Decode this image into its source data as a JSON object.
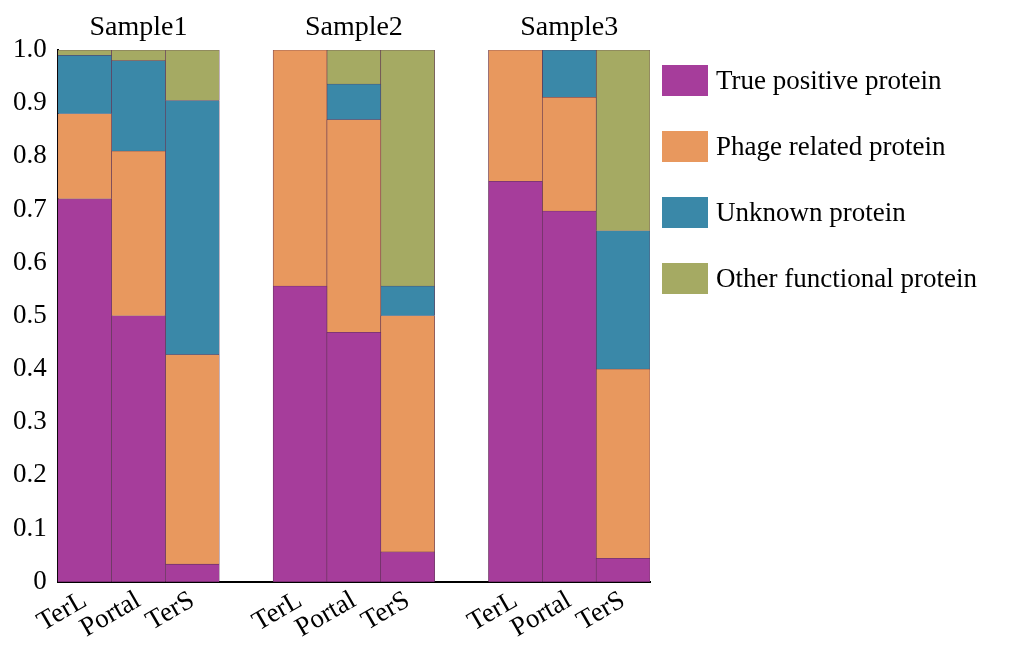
{
  "chart_data": {
    "type": "bar",
    "stacked": true,
    "categories": [
      "TerL",
      "Portal",
      "TerS",
      null,
      "TerL",
      "Portal",
      "TerS",
      null,
      "TerL",
      "Portal",
      "TerS"
    ],
    "series": [
      {
        "name": "True positive protein",
        "color": "#a63d9b",
        "values": [
          0.72,
          0.5,
          0.033,
          null,
          0.556,
          0.469,
          0.056,
          null,
          0.753,
          0.697,
          0.044
        ]
      },
      {
        "name": "Phage related protein",
        "color": "#e8985e",
        "values": [
          0.16,
          0.31,
          0.394,
          null,
          0.444,
          0.4,
          0.444,
          null,
          0.247,
          0.214,
          0.356
        ]
      },
      {
        "name": "Unknown protein",
        "color": "#3a88a8",
        "values": [
          0.11,
          0.17,
          0.478,
          null,
          0,
          0.067,
          0.056,
          null,
          0,
          0.089,
          0.26
        ]
      },
      {
        "name": "Other functional protein",
        "color": "#a5aa63",
        "values": [
          0.01,
          0.02,
          0.095,
          null,
          0,
          0.064,
          0.444,
          null,
          0,
          0,
          0.34
        ]
      }
    ],
    "ylim": [
      0,
      1
    ],
    "yticks": [
      0,
      0.1,
      0.2,
      0.3,
      0.4,
      0.5,
      0.6,
      0.7,
      0.8,
      0.9,
      {
        "value": 1,
        "label": "1.0"
      }
    ],
    "annotations": [
      "Sample1",
      "Sample2",
      "Sample3"
    ],
    "grid": false,
    "legend": "right"
  }
}
